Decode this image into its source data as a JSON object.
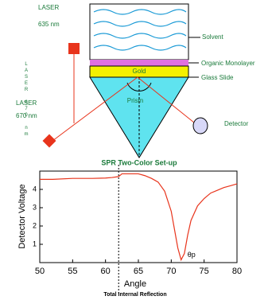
{
  "diagram": {
    "laser_top": {
      "label": "LASER",
      "wavelength": "635 nm"
    },
    "laser_bottom": {
      "label": "LASER",
      "wavelength": "670 nm"
    },
    "vertical_label": "LASER 670 nm",
    "layers": {
      "solvent": "Solvent",
      "monolayer": "Organic Monolayer",
      "gold": "Gold",
      "glass": "Glass Slide"
    },
    "prism": "Prism",
    "detector": "Detector",
    "caption": "SPR Two-Color Set-up"
  },
  "chart_data": {
    "type": "line",
    "y_label": "Detector Voltage",
    "x_label": "Angle",
    "footer": "Total Internal Reflection",
    "annotation": "θp",
    "xlim": [
      50,
      80
    ],
    "xticks": [
      50,
      55,
      60,
      65,
      70,
      75,
      80
    ],
    "ylim": [
      0,
      5
    ],
    "yticks": [
      1,
      2,
      3,
      4
    ],
    "tir_angle": 62,
    "x": [
      50,
      52,
      55,
      58,
      60,
      61,
      62,
      62.5,
      63,
      65,
      66,
      67,
      68,
      69,
      70,
      70.5,
      71,
      71.5,
      72,
      72.5,
      73,
      74,
      75,
      76,
      77,
      78,
      79,
      80
    ],
    "series": [
      {
        "color": "#e8341c",
        "values": [
          4.55,
          4.55,
          4.6,
          4.6,
          4.62,
          4.65,
          4.7,
          4.85,
          4.85,
          4.85,
          4.75,
          4.6,
          4.4,
          3.9,
          2.8,
          1.8,
          0.8,
          0.15,
          0.5,
          1.5,
          2.3,
          3.1,
          3.5,
          3.8,
          3.95,
          4.1,
          4.2,
          4.3
        ]
      }
    ]
  }
}
